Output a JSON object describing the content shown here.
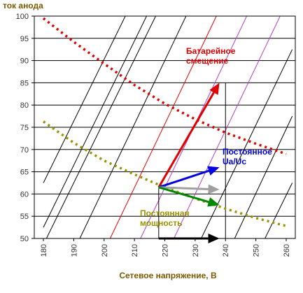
{
  "chart_data": {
    "type": "line",
    "ylabel": "ток анода",
    "xlabel": "Сетевое напряжение, В",
    "xlim": [
      177,
      263
    ],
    "ylim": [
      50,
      100
    ],
    "xticks": [
      180,
      190,
      200,
      210,
      220,
      230,
      240,
      250,
      260
    ],
    "yticks": [
      50,
      55,
      60,
      65,
      70,
      75,
      80,
      85,
      90,
      95,
      100
    ],
    "grid": "horizontal",
    "colors": {
      "red": "#e00000",
      "olive": "#9a9200",
      "blue": "#0000e0",
      "green": "#008800",
      "gray": "#a0a0a0",
      "black": "#000000",
      "purple": "#b040c0",
      "label_brown": "#7a5a00"
    },
    "dotted_curves": [
      {
        "color": "red",
        "points": [
          [
            180,
            99.5
          ],
          [
            190,
            94.2
          ],
          [
            200,
            89.3
          ],
          [
            210,
            84.5
          ],
          [
            220,
            80.3
          ],
          [
            230,
            76.8
          ],
          [
            240,
            73.8
          ],
          [
            250,
            71.3
          ],
          [
            260,
            69.0
          ]
        ]
      },
      {
        "color": "olive",
        "points": [
          [
            180,
            76.3
          ],
          [
            190,
            71.5
          ],
          [
            200,
            67.5
          ],
          [
            210,
            64.4
          ],
          [
            220,
            61.5
          ],
          [
            230,
            59.0
          ],
          [
            240,
            56.7
          ],
          [
            250,
            54.6
          ],
          [
            260,
            52.8
          ]
        ]
      }
    ],
    "diagonal_lines": [
      {
        "color": "black",
        "from": [
          180,
          52.5
        ],
        "to": [
          214,
          100
        ]
      },
      {
        "color": "black",
        "from": [
          180,
          62.5
        ],
        "to": [
          207,
          100
        ]
      },
      {
        "color": "black",
        "from": [
          181,
          50
        ],
        "to": [
          217,
          100
        ]
      },
      {
        "color": "black",
        "from": [
          192,
          50
        ],
        "to": [
          227,
          100
        ]
      },
      {
        "color": "red",
        "from": [
          202,
          50
        ],
        "to": [
          237,
          100
        ]
      },
      {
        "color": "purple",
        "from": [
          212,
          50
        ],
        "to": [
          247,
          100
        ]
      },
      {
        "color": "purple",
        "from": [
          223,
          50
        ],
        "to": [
          258,
          100
        ]
      },
      {
        "color": "black",
        "from": [
          232,
          50
        ],
        "to": [
          262,
          92.5
        ]
      },
      {
        "color": "black",
        "from": [
          243,
          50
        ],
        "to": [
          262,
          77.5
        ]
      },
      {
        "color": "black",
        "from": [
          253,
          50
        ],
        "to": [
          262,
          62.5
        ]
      }
    ],
    "reference_lines": [
      {
        "color": "black",
        "from": [
          218,
          50
        ],
        "to": [
          218,
          61.5
        ]
      },
      {
        "color": "black",
        "from": [
          240,
          50
        ],
        "to": [
          240,
          85
        ]
      }
    ],
    "arrows": [
      {
        "name": "battery-bias",
        "color": "red",
        "from": [
          218,
          61.5
        ],
        "to": [
          238,
          85.0
        ]
      },
      {
        "name": "constant-ratio",
        "color": "blue",
        "from": [
          218,
          61.5
        ],
        "to": [
          238,
          66.0
        ]
      },
      {
        "name": "gray",
        "color": "gray",
        "from": [
          218,
          61.5
        ],
        "to": [
          238,
          61.0
        ]
      },
      {
        "name": "constant-power",
        "color": "green",
        "from": [
          218,
          61.5
        ],
        "to": [
          238,
          57.5
        ]
      },
      {
        "name": "baseline",
        "color": "black",
        "from": [
          218,
          50
        ],
        "to": [
          238,
          50
        ]
      }
    ],
    "annotations": [
      {
        "key": "battery",
        "lines": [
          "Батарейное",
          "смещение"
        ],
        "color": "red"
      },
      {
        "key": "ratio",
        "lines": [
          "Постоянное",
          "Ua/Uc"
        ],
        "color": "blue"
      },
      {
        "key": "power",
        "lines": [
          "Постоянная",
          "мощность"
        ],
        "color": "olive"
      }
    ]
  }
}
